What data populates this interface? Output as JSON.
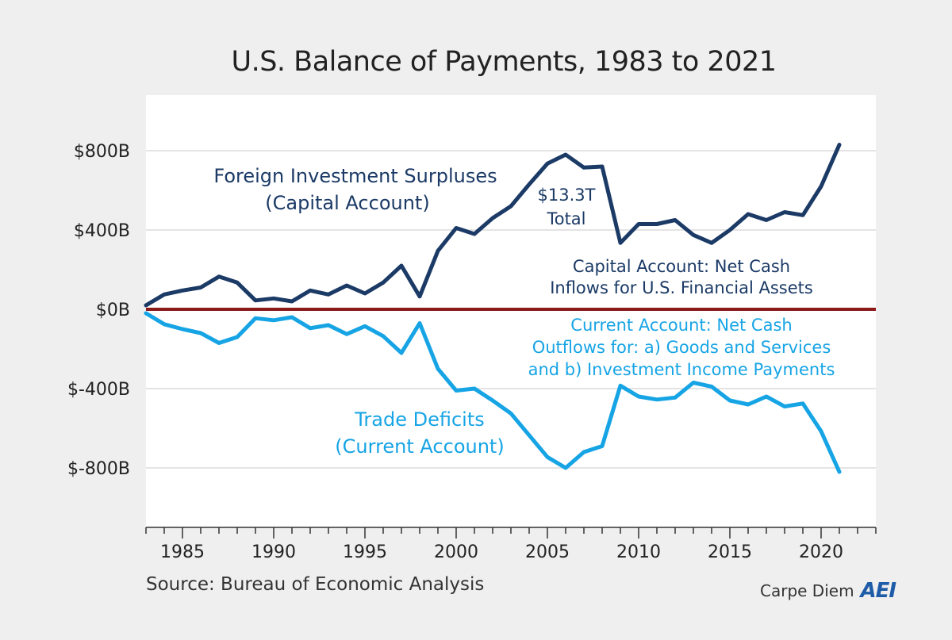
{
  "chart_data": {
    "type": "line",
    "title": "U.S. Balance of Payments, 1983 to 2021",
    "x": [
      1983,
      1984,
      1985,
      1986,
      1987,
      1988,
      1989,
      1990,
      1991,
      1992,
      1993,
      1994,
      1995,
      1996,
      1997,
      1998,
      1999,
      2000,
      2001,
      2002,
      2003,
      2004,
      2005,
      2006,
      2007,
      2008,
      2009,
      2010,
      2011,
      2012,
      2013,
      2014,
      2015,
      2016,
      2017,
      2018,
      2019,
      2020,
      2021
    ],
    "series": [
      {
        "name": "Foreign Investment Surpluses (Capital Account)",
        "color": "#1b3a66",
        "values": [
          20,
          75,
          95,
          110,
          165,
          135,
          45,
          55,
          40,
          95,
          75,
          120,
          80,
          135,
          220,
          65,
          295,
          410,
          380,
          460,
          520,
          630,
          735,
          780,
          715,
          720,
          335,
          430,
          430,
          450,
          375,
          335,
          400,
          480,
          450,
          490,
          475,
          620,
          830
        ]
      },
      {
        "name": "Trade Deficits (Current Account)",
        "color": "#16a4e5",
        "values": [
          -20,
          -75,
          -100,
          -120,
          -170,
          -140,
          -45,
          -55,
          -40,
          -95,
          -80,
          -125,
          -85,
          -135,
          -220,
          -70,
          -300,
          -410,
          -400,
          -460,
          -525,
          -635,
          -745,
          -800,
          -720,
          -690,
          -385,
          -440,
          -455,
          -445,
          -370,
          -390,
          -460,
          -480,
          -440,
          -490,
          -475,
          -615,
          -820
        ]
      }
    ],
    "ylim": [
      -1050,
      1000
    ],
    "xlim": [
      1983,
      2023
    ],
    "yticks": [
      800,
      400,
      0,
      -400,
      -800
    ],
    "ytick_labels": [
      "$800B",
      "$400B",
      "$0B",
      "$-400B",
      "$-800B"
    ],
    "xticks": [
      1985,
      1990,
      1995,
      2000,
      2005,
      2010,
      2015,
      2020
    ],
    "xtick_labels": [
      "1985",
      "1990",
      "1995",
      "2000",
      "2005",
      "2010",
      "2015",
      "2020"
    ],
    "zero_line_color": "#8b1a1a",
    "grid": true,
    "annotations": {
      "capital_title_1": "Foreign Investment Surpluses",
      "capital_title_2": "(Capital Account)",
      "total_1": "$13.3T",
      "total_2": "Total",
      "capital_desc_1": "Capital Account: Net Cash",
      "capital_desc_2": "Inflows for U.S. Financial Assets",
      "current_desc_1": "Current Account: Net Cash",
      "current_desc_2": "Outflows for: a) Goods and Services",
      "current_desc_3": "and b) Investment Income Payments",
      "trade_title_1": "Trade Deficits",
      "trade_title_2": "(Current Account)"
    }
  },
  "footer": {
    "source": "Source: Bureau of Economic Analysis",
    "brand_text": "Carpe Diem",
    "brand_logo": "AEI"
  }
}
